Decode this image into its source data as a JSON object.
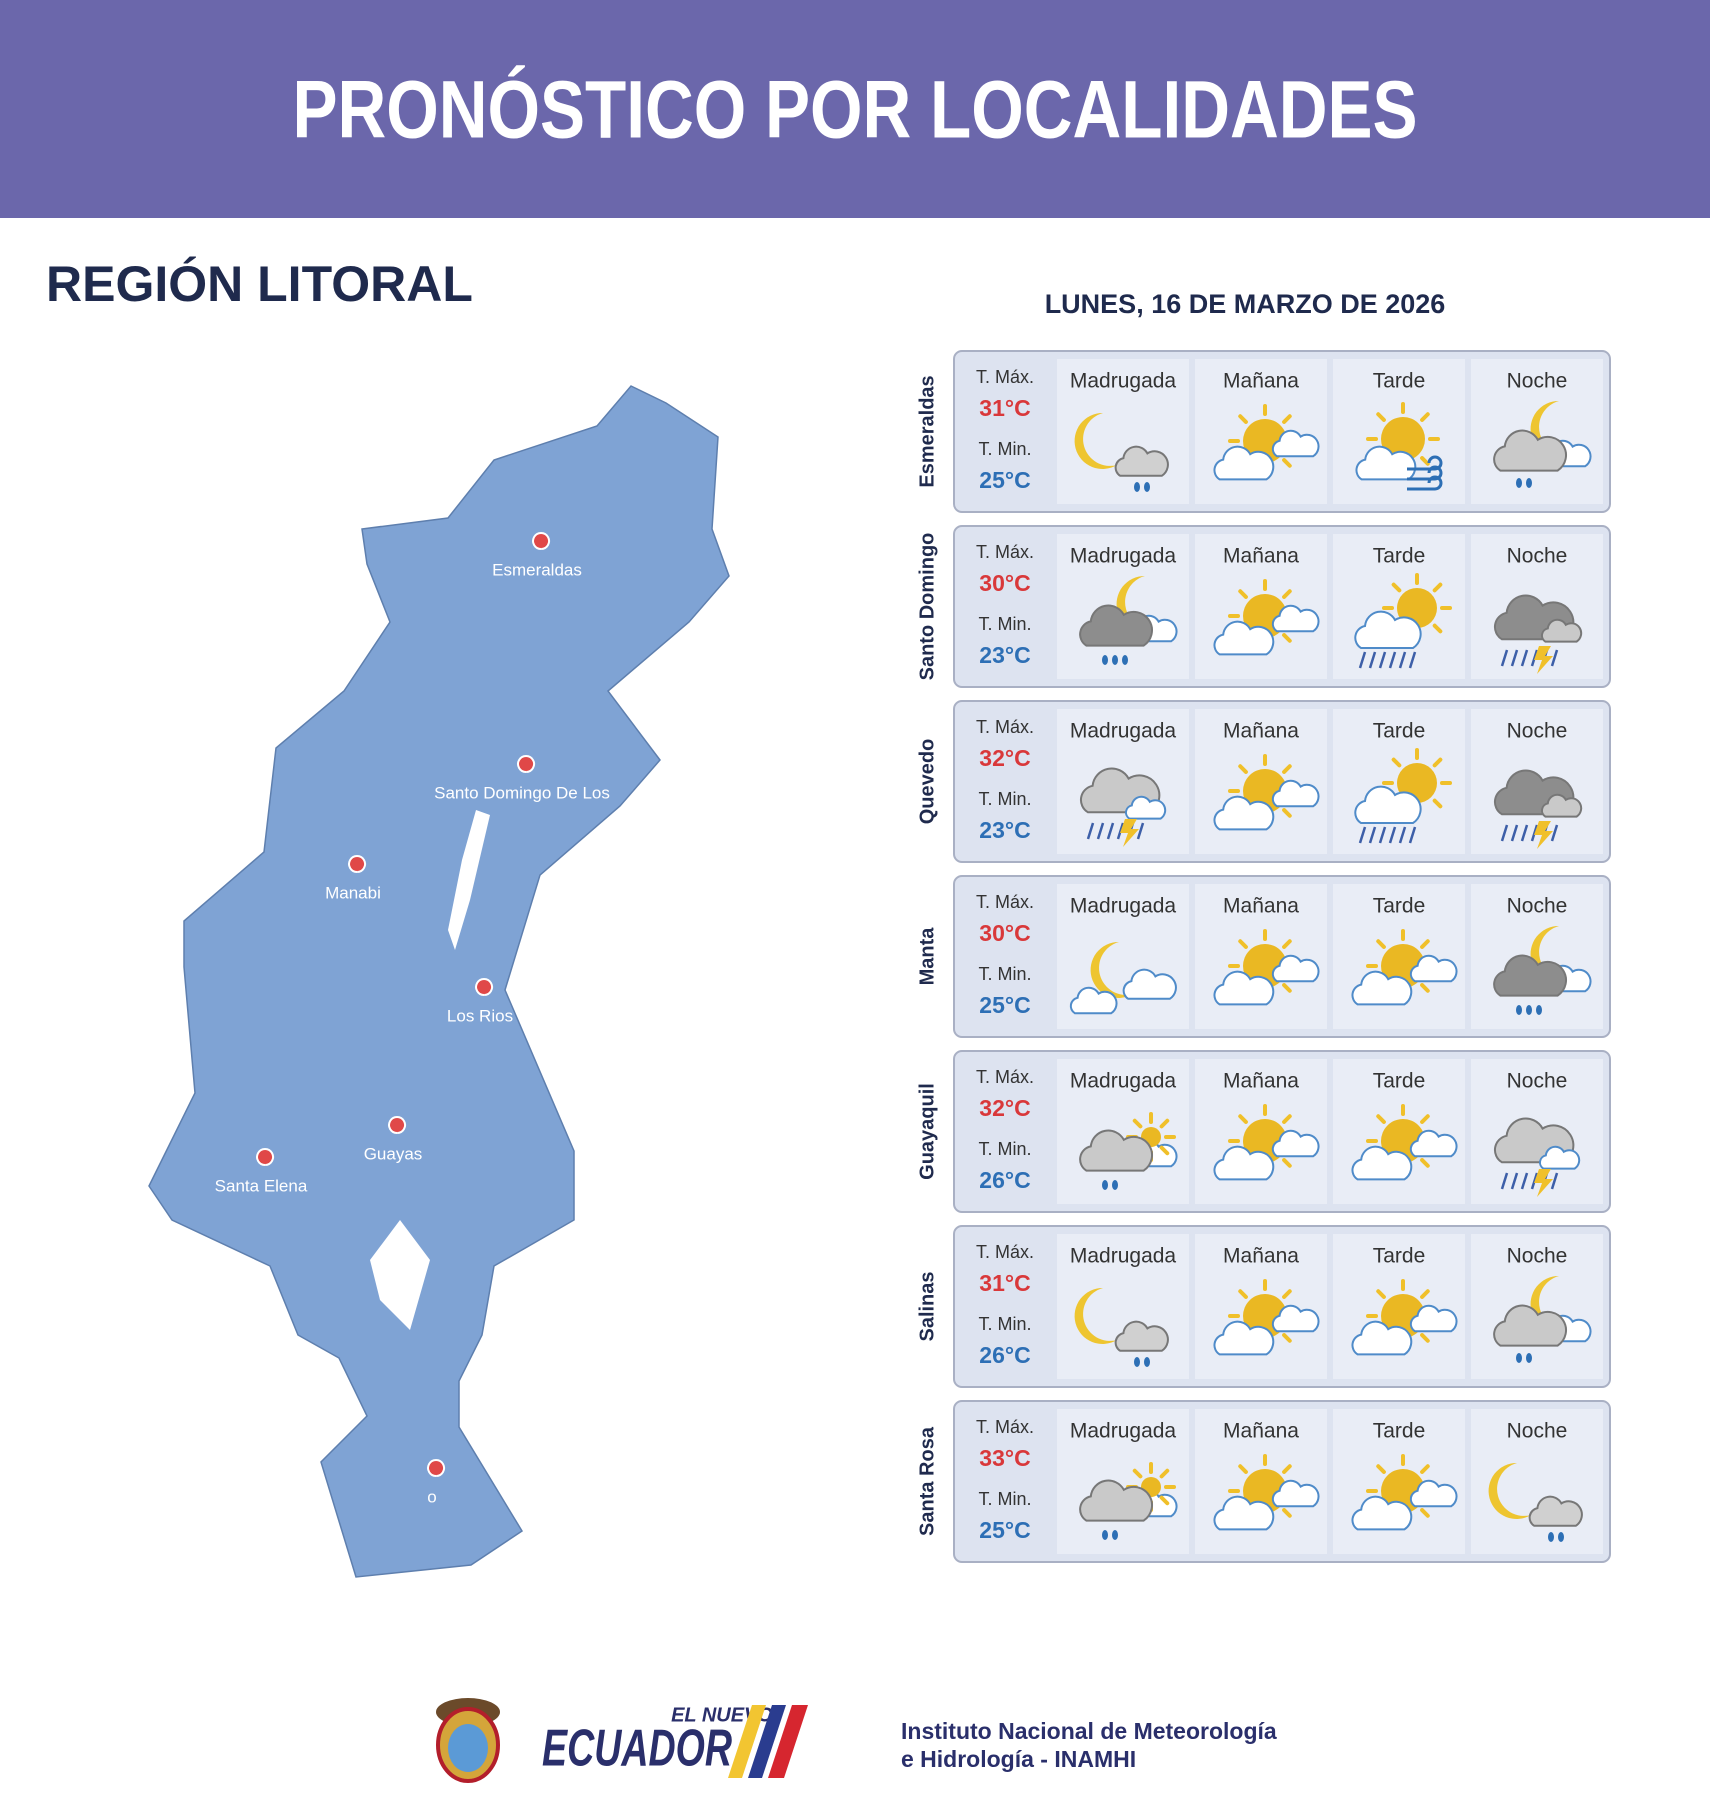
{
  "header": {
    "title": "PRONÓSTICO POR LOCALIDADES"
  },
  "region": {
    "title": "REGIÓN LITORAL"
  },
  "map": {
    "labels": [
      "Esmeraldas",
      "Santo Domingo De Los",
      "Manabi",
      "Los Rios",
      "Guayas",
      "Santa Elena",
      "o"
    ]
  },
  "forecast": {
    "date": "LUNES, 16 DE MARZO DE 2026",
    "rows": [
      {
        "city": "Esmeraldas",
        "tmax_label": "T. Máx.",
        "tmax": "31°C",
        "tmin_label": "T. Min.",
        "tmin": "25°C",
        "periods": [
          "Madrugada",
          "Mañana",
          "Tarde",
          "Noche"
        ]
      },
      {
        "city": "Santo Domingo",
        "tmax_label": "T. Máx.",
        "tmax": "30°C",
        "tmin_label": "T. Min.",
        "tmin": "23°C",
        "periods": [
          "Madrugada",
          "Mañana",
          "Tarde",
          "Noche"
        ]
      },
      {
        "city": "Quevedo",
        "tmax_label": "T. Máx.",
        "tmax": "32°C",
        "tmin_label": "T. Min.",
        "tmin": "23°C",
        "periods": [
          "Madrugada",
          "Mañana",
          "Tarde",
          "Noche"
        ]
      },
      {
        "city": "Manta",
        "tmax_label": "T. Máx.",
        "tmax": "30°C",
        "tmin_label": "T. Min.",
        "tmin": "25°C",
        "periods": [
          "Madrugada",
          "Mañana",
          "Tarde",
          "Noche"
        ]
      },
      {
        "city": "Guayaquil",
        "tmax_label": "T. Máx.",
        "tmax": "32°C",
        "tmin_label": "T. Min.",
        "tmin": "26°C",
        "periods": [
          "Madrugada",
          "Mañana",
          "Tarde",
          "Noche"
        ]
      },
      {
        "city": "Salinas",
        "tmax_label": "T. Máx.",
        "tmax": "31°C",
        "tmin_label": "T. Min.",
        "tmin": "26°C",
        "periods": [
          "Madrugada",
          "Mañana",
          "Tarde",
          "Noche"
        ]
      },
      {
        "city": "Santa Rosa",
        "tmax_label": "T. Máx.",
        "tmax": "33°C",
        "tmin_label": "T. Min.",
        "tmin": "25°C",
        "periods": [
          "Madrugada",
          "Mañana",
          "Tarde",
          "Noche"
        ]
      }
    ]
  },
  "footer": {
    "brand_small": "EL NUEVO",
    "brand": "ECUADOR",
    "institute": [
      "Instituto Nacional de Meteorología",
      "e Hidrología - INAMHI"
    ]
  }
}
